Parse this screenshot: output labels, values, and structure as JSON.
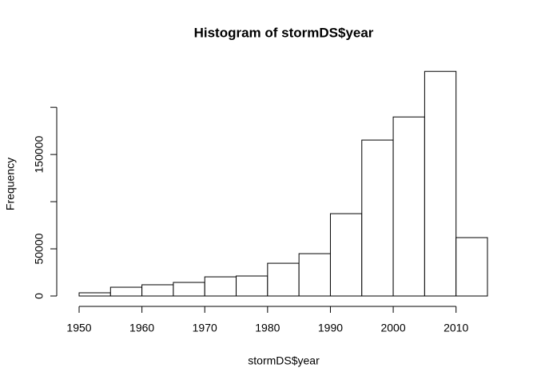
{
  "chart_data": {
    "type": "histogram",
    "title": "Histogram of stormDS$year",
    "x_label": "stormDS$year",
    "y_label": "Frequency",
    "bins": [
      1950,
      1955,
      1960,
      1965,
      1970,
      1975,
      1980,
      1985,
      1990,
      1995,
      2000,
      2005,
      2010,
      2015
    ],
    "values": [
      3400,
      9300,
      11900,
      14400,
      20300,
      21200,
      34700,
      44900,
      87300,
      165300,
      189800,
      238100,
      61900
    ],
    "color": "#ffffff",
    "xlim": [
      1950,
      2015
    ],
    "xticks": [
      1950,
      1960,
      1970,
      1980,
      1990,
      2000,
      2010
    ],
    "ylim": [
      0,
      240000
    ],
    "yticks": [
      0,
      50000,
      {
        "value": 100000,
        "label": null
      },
      150000,
      {
        "value": 200000,
        "label": null
      }
    ]
  }
}
